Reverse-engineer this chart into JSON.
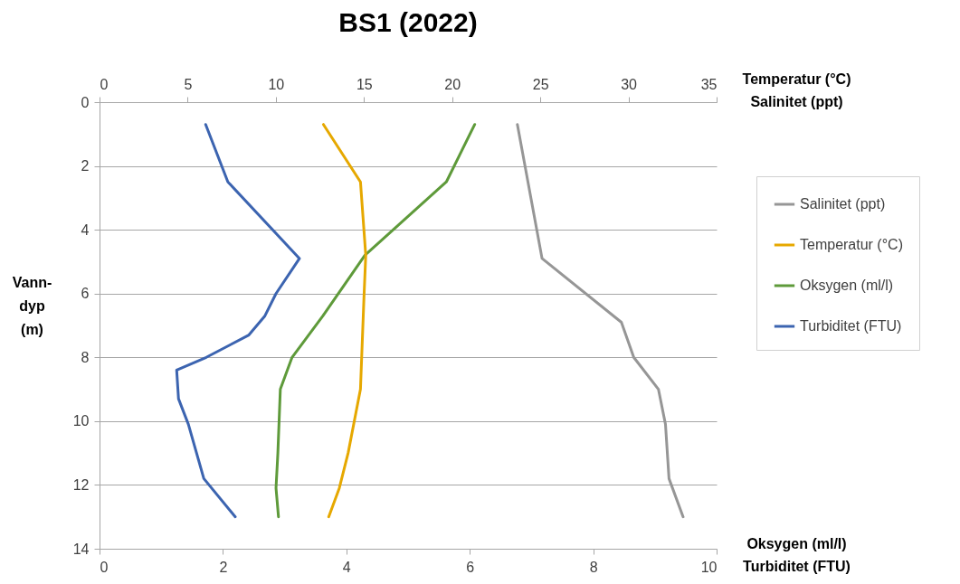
{
  "chart_data": {
    "type": "line",
    "title": "BS1 (2022)",
    "xlabel": "Oksygen (ml/l)\nTurbiditet (FTU)",
    "x2label": "Temperatur (°C)\nSalinitet (ppt)",
    "ylabel": "Vann-\ndyp\n(m)",
    "xlim": [
      0,
      10
    ],
    "xticks": [
      0,
      2,
      4,
      6,
      8,
      10
    ],
    "x2lim": [
      0,
      35
    ],
    "x2ticks": [
      0,
      5,
      10,
      15,
      20,
      25,
      30,
      35
    ],
    "ylim": [
      14,
      0
    ],
    "yticks": [
      0,
      2,
      4,
      6,
      8,
      10,
      12,
      14
    ],
    "grid": "y",
    "legend": "right",
    "series": [
      {
        "name": "Salinitet (ppt)",
        "color": "#969696",
        "axis": "x2",
        "x": [
          23.7,
          25.1,
          29.6,
          30.3,
          31.7,
          32.1,
          32.3,
          33.1
        ],
        "values": [
          0.7,
          4.9,
          6.9,
          8.0,
          9.0,
          10.1,
          11.8,
          13.0
        ]
      },
      {
        "name": "Temperatur (°C)",
        "color": "#e6a800",
        "axis": "x2",
        "x": [
          12.7,
          14.8,
          15.1,
          15.0,
          14.8,
          14.1,
          13.6,
          13.0
        ],
        "values": [
          0.7,
          2.5,
          4.8,
          6.1,
          9.0,
          11.0,
          12.1,
          13.0
        ]
      },
      {
        "name": "Oksygen (ml/l)",
        "color": "#5e9a3a",
        "x": [
          6.08,
          5.62,
          4.3,
          3.62,
          3.12,
          2.93,
          2.89,
          2.86,
          2.9
        ],
        "values": [
          0.7,
          2.5,
          4.8,
          6.7,
          8.0,
          9.0,
          11.0,
          12.1,
          13.0
        ]
      },
      {
        "name": "Turbiditet (FTU)",
        "color": "#3c64b0",
        "x": [
          1.72,
          2.08,
          3.24,
          2.86,
          2.68,
          2.42,
          1.73,
          1.25,
          1.28,
          1.44,
          1.69,
          2.2
        ],
        "values": [
          0.7,
          2.5,
          4.9,
          6.0,
          6.7,
          7.3,
          8.0,
          8.4,
          9.3,
          10.1,
          11.8,
          13.0
        ]
      }
    ]
  }
}
